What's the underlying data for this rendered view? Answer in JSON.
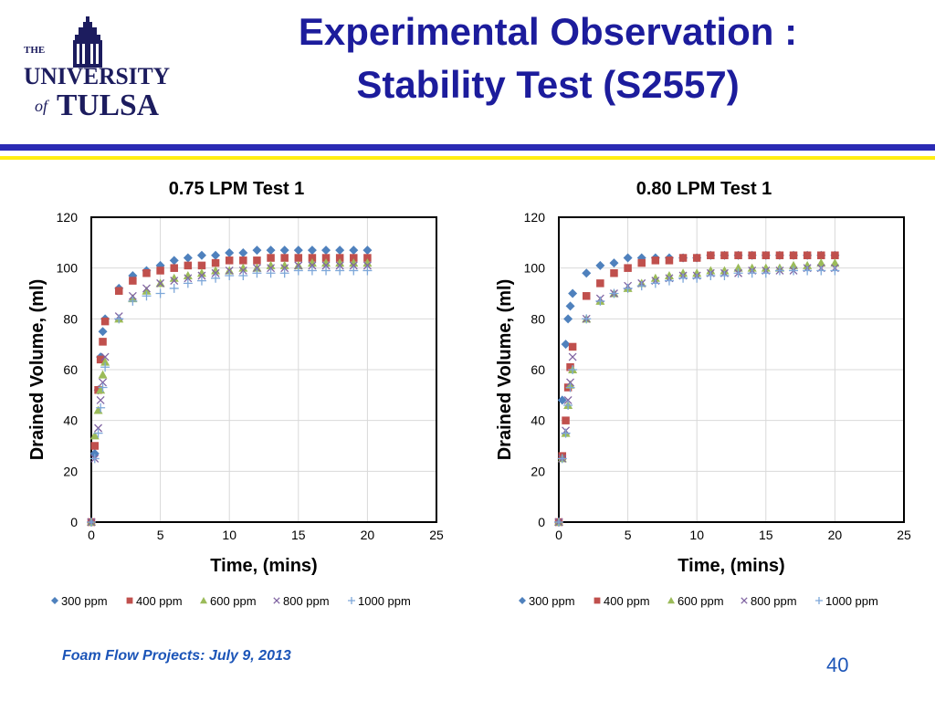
{
  "slide": {
    "title_line1": "Experimental Observation :",
    "title_line2": "Stability Test (S2557)",
    "footer": "Foam Flow Projects: July 9, 2013",
    "page_number": "40"
  },
  "logo": {
    "the": "THE",
    "university": "UNIVERSITY",
    "of": "of",
    "tulsa": "TULSA",
    "color": "#1c1c5e"
  },
  "colors": {
    "title": "#1c1c9c",
    "footer": "#1c55b8",
    "rule_blue": "#2b2bb4",
    "rule_yellow": "#ffee11"
  },
  "chart_data": [
    {
      "type": "scatter",
      "title": "0.75 LPM Test 1",
      "xlabel": "Time, (mins)",
      "ylabel": "Drained Volume, (ml)",
      "xlim": [
        0,
        25
      ],
      "ylim": [
        0,
        120
      ],
      "xticks": [
        0,
        5,
        10,
        15,
        20,
        25
      ],
      "yticks": [
        0,
        20,
        40,
        60,
        80,
        100,
        120
      ],
      "grid": true,
      "legend_position": "bottom",
      "series": [
        {
          "name": "300 ppm",
          "marker": "diamond",
          "color": "#4f81bd",
          "x": [
            0,
            0.25,
            0.5,
            0.67,
            0.83,
            1,
            2,
            3,
            4,
            5,
            6,
            7,
            8,
            9,
            10,
            11,
            12,
            13,
            14,
            15,
            16,
            17,
            18,
            19,
            20
          ],
          "y": [
            0,
            27,
            52,
            65,
            75,
            80,
            92,
            97,
            99,
            101,
            103,
            104,
            105,
            105,
            106,
            106,
            107,
            107,
            107,
            107,
            107,
            107,
            107,
            107,
            107
          ]
        },
        {
          "name": "400 ppm",
          "marker": "square",
          "color": "#c0504d",
          "x": [
            0,
            0.25,
            0.5,
            0.67,
            0.83,
            1,
            2,
            3,
            4,
            5,
            6,
            7,
            8,
            9,
            10,
            11,
            12,
            13,
            14,
            15,
            16,
            17,
            18,
            19,
            20
          ],
          "y": [
            0,
            30,
            52,
            64,
            71,
            79,
            91,
            95,
            98,
            99,
            100,
            101,
            101,
            102,
            103,
            103,
            103,
            104,
            104,
            104,
            104,
            104,
            104,
            104,
            104
          ]
        },
        {
          "name": "600 ppm",
          "marker": "triangle",
          "color": "#9bbb59",
          "x": [
            0,
            0.25,
            0.5,
            0.67,
            0.83,
            1,
            2,
            3,
            4,
            5,
            6,
            7,
            8,
            9,
            10,
            11,
            12,
            13,
            14,
            15,
            16,
            17,
            18,
            19,
            20
          ],
          "y": [
            0,
            34,
            44,
            52,
            58,
            63,
            80,
            88,
            91,
            94,
            96,
            97,
            98,
            99,
            99,
            100,
            100,
            101,
            101,
            101,
            102,
            102,
            102,
            102,
            102
          ]
        },
        {
          "name": "800 ppm",
          "marker": "x",
          "color": "#8064a2",
          "x": [
            0,
            0.25,
            0.5,
            0.67,
            0.83,
            1,
            2,
            3,
            4,
            5,
            6,
            7,
            8,
            9,
            10,
            11,
            12,
            13,
            14,
            15,
            16,
            17,
            18,
            19,
            20
          ],
          "y": [
            0,
            25,
            37,
            48,
            55,
            65,
            81,
            89,
            92,
            94,
            95,
            96,
            97,
            98,
            99,
            99,
            100,
            100,
            100,
            101,
            101,
            101,
            101,
            101,
            101
          ]
        },
        {
          "name": "1000 ppm",
          "marker": "plus",
          "color": "#7da7d9",
          "x": [
            0,
            0.25,
            0.5,
            0.67,
            0.83,
            1,
            2,
            3,
            4,
            5,
            6,
            7,
            8,
            9,
            10,
            11,
            12,
            13,
            14,
            15,
            16,
            17,
            18,
            19,
            20
          ],
          "y": [
            0,
            25,
            35,
            45,
            53,
            61,
            80,
            87,
            89,
            90,
            92,
            94,
            95,
            96,
            97,
            97,
            98,
            98,
            98,
            99,
            99,
            99,
            99,
            99,
            99
          ]
        }
      ]
    },
    {
      "type": "scatter",
      "title": "0.80 LPM Test 1",
      "xlabel": "Time, (mins)",
      "ylabel": "Drained Volume, (ml)",
      "xlim": [
        0,
        25
      ],
      "ylim": [
        0,
        120
      ],
      "xticks": [
        0,
        5,
        10,
        15,
        20,
        25
      ],
      "yticks": [
        0,
        20,
        40,
        60,
        80,
        100,
        120
      ],
      "grid": true,
      "legend_position": "bottom",
      "series": [
        {
          "name": "300 ppm",
          "marker": "diamond",
          "color": "#4f81bd",
          "x": [
            0,
            0.25,
            0.5,
            0.67,
            0.83,
            1,
            2,
            3,
            4,
            5,
            6,
            7,
            8,
            9,
            10,
            11,
            12,
            13,
            14,
            15,
            16,
            17,
            18,
            19,
            20
          ],
          "y": [
            0,
            48,
            70,
            80,
            85,
            90,
            98,
            101,
            102,
            104,
            104,
            104,
            104,
            104,
            104,
            105,
            105,
            105,
            105,
            105,
            105,
            105,
            105,
            105,
            105
          ]
        },
        {
          "name": "400 ppm",
          "marker": "square",
          "color": "#c0504d",
          "x": [
            0,
            0.25,
            0.5,
            0.67,
            0.83,
            1,
            2,
            3,
            4,
            5,
            6,
            7,
            8,
            9,
            10,
            11,
            12,
            13,
            14,
            15,
            16,
            17,
            18,
            19,
            20
          ],
          "y": [
            0,
            26,
            40,
            53,
            61,
            69,
            89,
            94,
            98,
            100,
            102,
            103,
            103,
            104,
            104,
            105,
            105,
            105,
            105,
            105,
            105,
            105,
            105,
            105,
            105
          ]
        },
        {
          "name": "600 ppm",
          "marker": "triangle",
          "color": "#9bbb59",
          "x": [
            0,
            0.25,
            0.5,
            0.67,
            0.83,
            1,
            2,
            3,
            4,
            5,
            6,
            7,
            8,
            9,
            10,
            11,
            12,
            13,
            14,
            15,
            16,
            17,
            18,
            19,
            20
          ],
          "y": [
            0,
            25,
            35,
            46,
            54,
            60,
            80,
            87,
            90,
            92,
            94,
            96,
            97,
            98,
            98,
            99,
            99,
            100,
            100,
            100,
            100,
            101,
            101,
            102,
            102
          ]
        },
        {
          "name": "800 ppm",
          "marker": "x",
          "color": "#8064a2",
          "x": [
            0,
            0.25,
            0.5,
            0.67,
            0.83,
            1,
            2,
            3,
            4,
            5,
            6,
            7,
            8,
            9,
            10,
            11,
            12,
            13,
            14,
            15,
            16,
            17,
            18,
            19,
            20
          ],
          "y": [
            0,
            25,
            36,
            48,
            55,
            65,
            80,
            88,
            90,
            93,
            94,
            95,
            96,
            97,
            97,
            98,
            98,
            98,
            99,
            99,
            99,
            99,
            100,
            100,
            100
          ]
        },
        {
          "name": "1000 ppm",
          "marker": "plus",
          "color": "#7da7d9",
          "x": [
            0,
            0.25,
            0.5,
            0.67,
            0.83,
            1,
            2,
            3,
            4,
            5,
            6,
            7,
            8,
            9,
            10,
            11,
            12,
            13,
            14,
            15,
            16,
            17,
            18,
            19,
            20
          ],
          "y": [
            0,
            25,
            35,
            46,
            53,
            60,
            80,
            87,
            90,
            92,
            93,
            94,
            95,
            96,
            96,
            97,
            97,
            98,
            98,
            98,
            99,
            99,
            99,
            99,
            99
          ]
        }
      ]
    }
  ]
}
